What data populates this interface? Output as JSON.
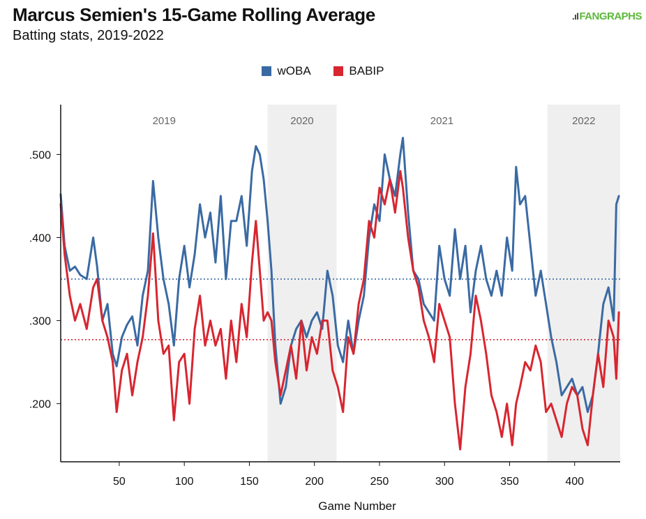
{
  "header": {
    "title": "Marcus Semien's 15-Game Rolling Average",
    "subtitle": "Batting stats, 2019-2022",
    "brand": "FANGRAPHS"
  },
  "colors": {
    "woba": "#3a6aa3",
    "babip": "#d72630",
    "season_shade": "#efefef"
  },
  "chart_data": {
    "type": "line",
    "title": "Marcus Semien's 15-Game Rolling Average",
    "subtitle": "Batting stats, 2019-2022",
    "xlabel": "Game Number",
    "ylabel": "",
    "xlim": [
      5,
      435
    ],
    "ylim": [
      0.13,
      0.56
    ],
    "x_ticks": [
      50,
      100,
      150,
      200,
      250,
      300,
      350,
      400
    ],
    "x_tick_labels": [
      "50",
      "100",
      "150",
      "200",
      "250",
      "300",
      "350",
      "400"
    ],
    "y_ticks": [
      0.2,
      0.3,
      0.4,
      0.5
    ],
    "y_tick_labels": [
      ".200",
      ".300",
      ".400",
      ".500"
    ],
    "grid": false,
    "legend": "top-center",
    "seasons": [
      {
        "label": "2019",
        "start": 5,
        "end": 164,
        "shaded": false
      },
      {
        "label": "2020",
        "start": 164,
        "end": 217,
        "shaded": true
      },
      {
        "label": "2021",
        "start": 217,
        "end": 379,
        "shaded": false
      },
      {
        "label": "2022",
        "start": 379,
        "end": 435,
        "shaded": true
      }
    ],
    "reference_lines": [
      {
        "series": "wOBA",
        "value": 0.35,
        "style": "dotted"
      },
      {
        "series": "BABIP",
        "value": 0.277,
        "style": "dotted"
      }
    ],
    "series": [
      {
        "name": "wOBA",
        "color": "#3a6aa3",
        "x": [
          5,
          8,
          12,
          16,
          20,
          25,
          30,
          33,
          37,
          41,
          45,
          48,
          52,
          56,
          60,
          64,
          68,
          72,
          76,
          80,
          84,
          88,
          92,
          96,
          100,
          104,
          108,
          112,
          116,
          120,
          124,
          128,
          132,
          136,
          140,
          144,
          148,
          152,
          155,
          158,
          161,
          164,
          167,
          170,
          174,
          178,
          182,
          186,
          190,
          194,
          198,
          202,
          206,
          210,
          214,
          218,
          222,
          226,
          230,
          234,
          238,
          242,
          246,
          250,
          254,
          258,
          262,
          266,
          268,
          272,
          276,
          280,
          284,
          288,
          292,
          296,
          300,
          304,
          308,
          312,
          316,
          320,
          324,
          328,
          332,
          336,
          340,
          344,
          348,
          352,
          355,
          358,
          362,
          366,
          370,
          374,
          378,
          382,
          386,
          390,
          394,
          398,
          402,
          406,
          410,
          414,
          418,
          422,
          426,
          430,
          432,
          434
        ],
        "values": [
          0.452,
          0.39,
          0.36,
          0.365,
          0.355,
          0.35,
          0.4,
          0.365,
          0.3,
          0.32,
          0.26,
          0.245,
          0.28,
          0.295,
          0.305,
          0.27,
          0.33,
          0.36,
          0.468,
          0.4,
          0.35,
          0.32,
          0.27,
          0.35,
          0.39,
          0.34,
          0.38,
          0.44,
          0.4,
          0.43,
          0.37,
          0.45,
          0.35,
          0.42,
          0.42,
          0.45,
          0.39,
          0.48,
          0.51,
          0.5,
          0.47,
          0.42,
          0.36,
          0.27,
          0.2,
          0.22,
          0.27,
          0.29,
          0.3,
          0.28,
          0.3,
          0.31,
          0.29,
          0.36,
          0.33,
          0.27,
          0.25,
          0.3,
          0.26,
          0.3,
          0.33,
          0.4,
          0.44,
          0.42,
          0.5,
          0.47,
          0.45,
          0.5,
          0.52,
          0.43,
          0.36,
          0.35,
          0.32,
          0.31,
          0.3,
          0.39,
          0.35,
          0.33,
          0.41,
          0.35,
          0.39,
          0.31,
          0.36,
          0.39,
          0.35,
          0.33,
          0.36,
          0.33,
          0.4,
          0.36,
          0.485,
          0.44,
          0.45,
          0.39,
          0.33,
          0.36,
          0.32,
          0.28,
          0.25,
          0.21,
          0.22,
          0.23,
          0.21,
          0.22,
          0.19,
          0.21,
          0.26,
          0.32,
          0.34,
          0.3,
          0.44,
          0.45
        ]
      },
      {
        "name": "BABIP",
        "color": "#d72630",
        "x": [
          5,
          8,
          12,
          16,
          20,
          25,
          30,
          33,
          37,
          41,
          45,
          48,
          52,
          56,
          60,
          64,
          68,
          72,
          76,
          80,
          84,
          88,
          92,
          96,
          100,
          104,
          108,
          112,
          116,
          120,
          124,
          128,
          132,
          136,
          140,
          144,
          148,
          152,
          155,
          158,
          161,
          164,
          167,
          170,
          174,
          178,
          182,
          186,
          190,
          194,
          198,
          202,
          206,
          210,
          214,
          218,
          222,
          226,
          230,
          234,
          238,
          242,
          246,
          250,
          254,
          258,
          262,
          266,
          268,
          272,
          276,
          280,
          284,
          288,
          292,
          296,
          300,
          304,
          308,
          312,
          316,
          320,
          324,
          328,
          332,
          336,
          340,
          344,
          348,
          352,
          355,
          358,
          362,
          366,
          370,
          374,
          378,
          382,
          386,
          390,
          394,
          398,
          402,
          406,
          410,
          414,
          418,
          422,
          426,
          430,
          432,
          434
        ],
        "values": [
          0.44,
          0.38,
          0.33,
          0.3,
          0.32,
          0.29,
          0.34,
          0.35,
          0.3,
          0.28,
          0.25,
          0.19,
          0.24,
          0.26,
          0.21,
          0.25,
          0.28,
          0.33,
          0.405,
          0.3,
          0.26,
          0.27,
          0.18,
          0.25,
          0.26,
          0.2,
          0.29,
          0.33,
          0.27,
          0.3,
          0.27,
          0.29,
          0.23,
          0.3,
          0.25,
          0.32,
          0.28,
          0.37,
          0.42,
          0.36,
          0.3,
          0.31,
          0.3,
          0.25,
          0.21,
          0.24,
          0.27,
          0.23,
          0.3,
          0.24,
          0.28,
          0.26,
          0.3,
          0.3,
          0.24,
          0.22,
          0.19,
          0.28,
          0.26,
          0.32,
          0.35,
          0.42,
          0.4,
          0.46,
          0.44,
          0.47,
          0.43,
          0.48,
          0.46,
          0.4,
          0.36,
          0.34,
          0.3,
          0.28,
          0.25,
          0.32,
          0.3,
          0.28,
          0.2,
          0.145,
          0.22,
          0.26,
          0.33,
          0.3,
          0.26,
          0.21,
          0.19,
          0.16,
          0.2,
          0.15,
          0.2,
          0.22,
          0.25,
          0.24,
          0.27,
          0.25,
          0.19,
          0.2,
          0.18,
          0.16,
          0.2,
          0.22,
          0.21,
          0.17,
          0.15,
          0.21,
          0.26,
          0.22,
          0.3,
          0.28,
          0.23,
          0.31
        ]
      }
    ]
  }
}
